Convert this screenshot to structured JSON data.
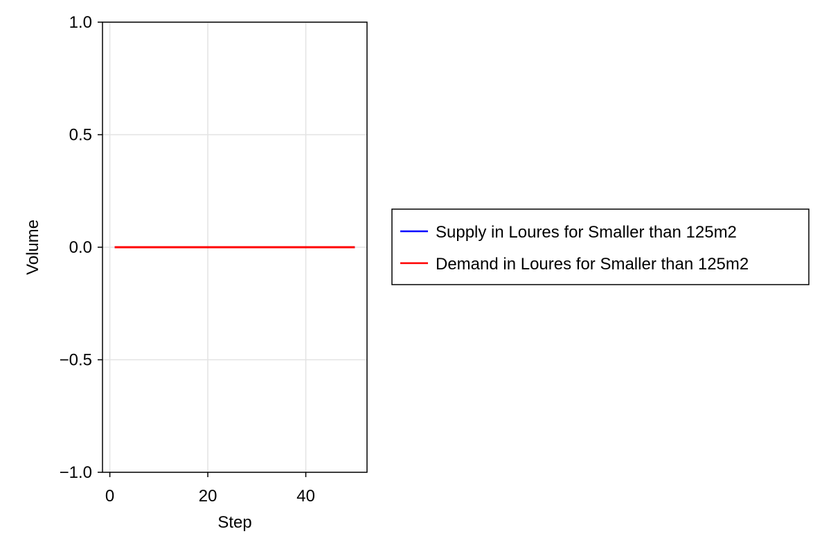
{
  "chart_data": {
    "type": "line",
    "xlabel": "Step",
    "ylabel": "Volume",
    "xlim": [
      -1.5,
      52.5
    ],
    "ylim": [
      -1.0,
      1.0
    ],
    "xticks": [
      0,
      20,
      40
    ],
    "yticks": [
      -1.0,
      -0.5,
      0.0,
      0.5,
      1.0
    ],
    "xtick_labels": [
      "0",
      "20",
      "40"
    ],
    "ytick_labels": [
      "−1.0",
      "−0.5",
      "0.0",
      "0.5",
      "1.0"
    ],
    "grid": true,
    "legend_position": "right",
    "x": [
      1,
      2,
      3,
      4,
      5,
      6,
      7,
      8,
      9,
      10,
      11,
      12,
      13,
      14,
      15,
      16,
      17,
      18,
      19,
      20,
      21,
      22,
      23,
      24,
      25,
      26,
      27,
      28,
      29,
      30,
      31,
      32,
      33,
      34,
      35,
      36,
      37,
      38,
      39,
      40,
      41,
      42,
      43,
      44,
      45,
      46,
      47,
      48,
      49,
      50
    ],
    "series": [
      {
        "name": "Supply in Loures for Smaller than 125m2",
        "color": "#0000ff",
        "values": [
          0,
          0,
          0,
          0,
          0,
          0,
          0,
          0,
          0,
          0,
          0,
          0,
          0,
          0,
          0,
          0,
          0,
          0,
          0,
          0,
          0,
          0,
          0,
          0,
          0,
          0,
          0,
          0,
          0,
          0,
          0,
          0,
          0,
          0,
          0,
          0,
          0,
          0,
          0,
          0,
          0,
          0,
          0,
          0,
          0,
          0,
          0,
          0,
          0,
          0
        ]
      },
      {
        "name": "Demand in Loures for Smaller than 125m2",
        "color": "#ff0000",
        "values": [
          0,
          0,
          0,
          0,
          0,
          0,
          0,
          0,
          0,
          0,
          0,
          0,
          0,
          0,
          0,
          0,
          0,
          0,
          0,
          0,
          0,
          0,
          0,
          0,
          0,
          0,
          0,
          0,
          0,
          0,
          0,
          0,
          0,
          0,
          0,
          0,
          0,
          0,
          0,
          0,
          0,
          0,
          0,
          0,
          0,
          0,
          0,
          0,
          0,
          0
        ]
      }
    ]
  }
}
